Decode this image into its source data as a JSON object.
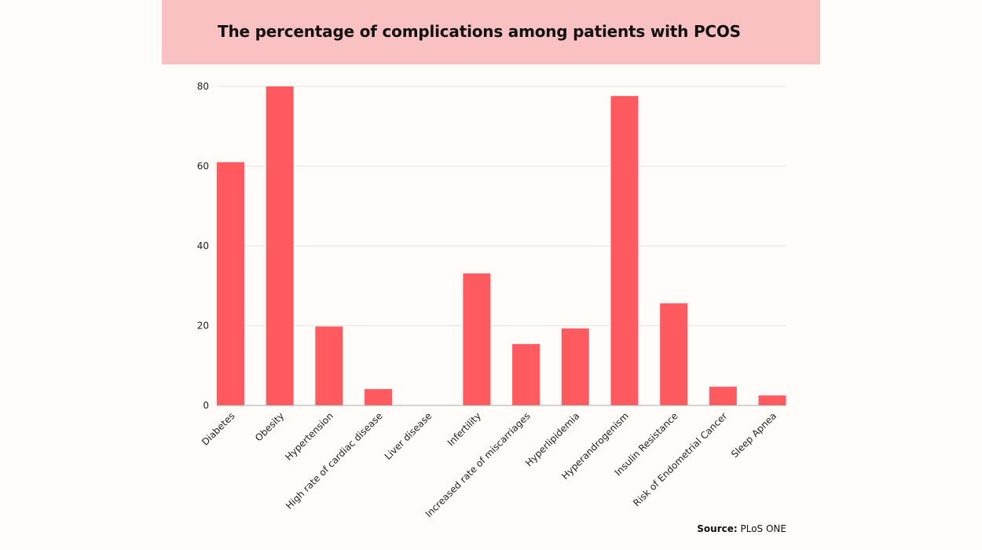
{
  "chart_data": {
    "type": "bar",
    "title": "The percentage of complications among patients with PCOS",
    "xlabel": "",
    "ylabel": "",
    "ylim": [
      0,
      80
    ],
    "yticks": [
      0,
      20,
      40,
      60,
      80
    ],
    "grid": true,
    "bar_color": "#ff5a5f",
    "categories": [
      "Diabetes",
      "Obesity",
      "Hypertension",
      "High rate of cardiac disease",
      "Liver disease",
      "Infertility",
      "Increased rate of miscarriages",
      "Hyperlipidemia",
      "Hyperandrogenism",
      "Insulin Resistance",
      "Risk of Endometrial Cancer",
      "Sleep Apnea"
    ],
    "values": [
      61,
      80,
      19.8,
      4.1,
      0,
      33.1,
      15.4,
      19.3,
      77.6,
      25.6,
      4.7,
      2.5
    ]
  },
  "source": {
    "label": "Source:",
    "value": "PLoS ONE"
  }
}
